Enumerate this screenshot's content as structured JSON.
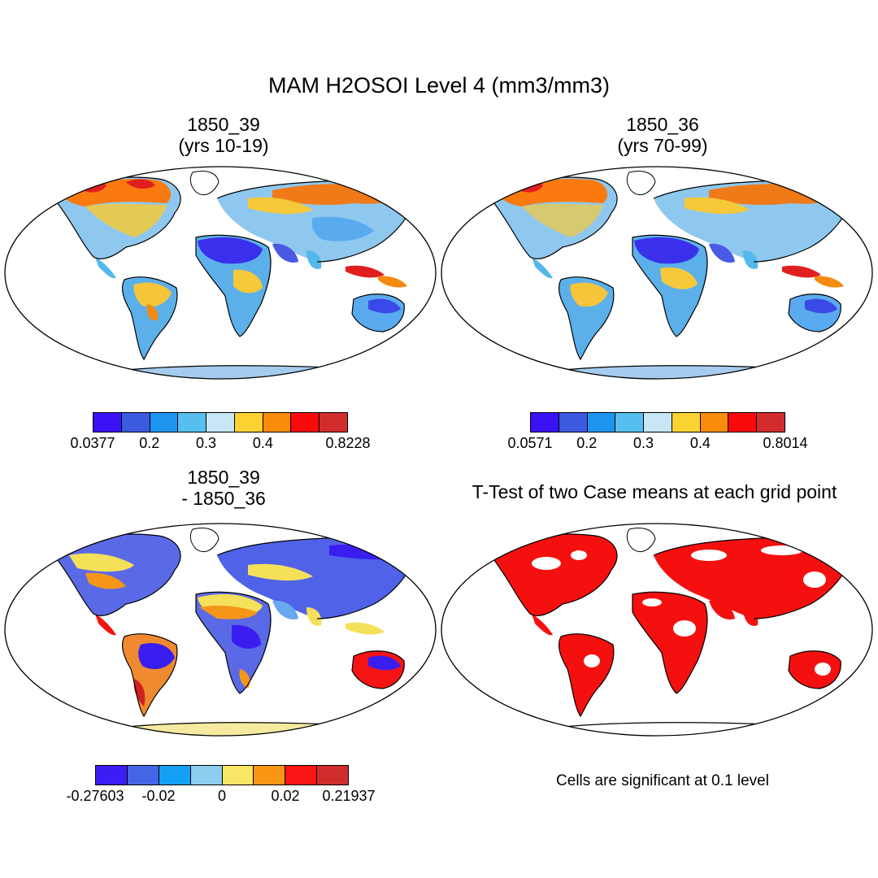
{
  "title": "MAM H2OSOI Level 4 (mm3/mm3)",
  "panels": {
    "top_left": {
      "title_line1": "1850_39",
      "title_line2": "(yrs 10-19)"
    },
    "top_right": {
      "title_line1": "1850_36",
      "title_line2": "(yrs 70-99)"
    },
    "bottom_left": {
      "title_line1": "1850_39",
      "title_line2": "- 1850_36"
    },
    "bottom_right": {
      "title_line1": "T-Test of two Case means at each grid point"
    }
  },
  "colorbars": {
    "top_left": {
      "colors": [
        "#3a12f5",
        "#3c5ae0",
        "#1c95f0",
        "#55c0f0",
        "#c8e6f5",
        "#fad232",
        "#fa8c0a",
        "#fa0a0a",
        "#d22d2d"
      ],
      "ticks": [
        {
          "label": "0.0377",
          "at": 0
        },
        {
          "label": "0.2",
          "at": 2
        },
        {
          "label": "0.3",
          "at": 4
        },
        {
          "label": "0.4",
          "at": 6
        },
        {
          "label": "0.8228",
          "at": 9
        }
      ]
    },
    "top_right": {
      "colors": [
        "#3a12f5",
        "#3c5ae0",
        "#1c95f0",
        "#55c0f0",
        "#c8e6f5",
        "#fad232",
        "#fa8c0a",
        "#fa0a0a",
        "#d22d2d"
      ],
      "ticks": [
        {
          "label": "0.0571",
          "at": 0
        },
        {
          "label": "0.2",
          "at": 2
        },
        {
          "label": "0.3",
          "at": 4
        },
        {
          "label": "0.4",
          "at": 6
        },
        {
          "label": "0.8014",
          "at": 9
        }
      ]
    },
    "bottom_left": {
      "colors": [
        "#3c1ef5",
        "#4665e6",
        "#14a0f5",
        "#8ccdf0",
        "#fae664",
        "#fa9614",
        "#fa1414",
        "#d22d2d"
      ],
      "ticks": [
        {
          "label": "-0.27603",
          "at": 0
        },
        {
          "label": "-0.02",
          "at": 2
        },
        {
          "label": "0",
          "at": 4
        },
        {
          "label": "0.02",
          "at": 6
        },
        {
          "label": "0.21937",
          "at": 8
        }
      ]
    }
  },
  "significance_note": "Cells are significant at 0.1 level"
}
